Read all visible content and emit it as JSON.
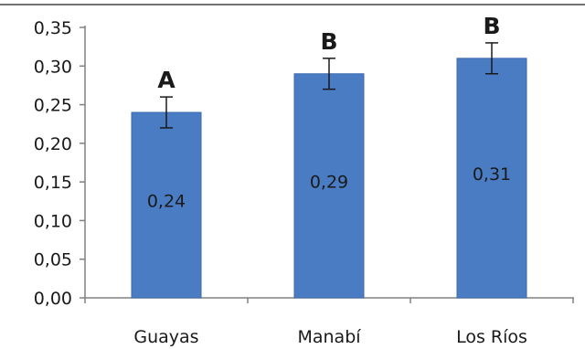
{
  "chart_data": {
    "type": "bar",
    "categories": [
      "Guayas",
      "Manabí",
      "Los Ríos"
    ],
    "values": [
      0.24,
      0.29,
      0.31
    ],
    "value_labels": [
      "0,24",
      "0,29",
      "0,31"
    ],
    "error": [
      0.02,
      0.02,
      0.02
    ],
    "group_letters": [
      "A",
      "B",
      "B"
    ],
    "ylim": [
      0,
      0.35
    ],
    "yticks": [
      0,
      0.05,
      0.1,
      0.15,
      0.2,
      0.25,
      0.3,
      0.35
    ],
    "ytick_labels": [
      "0,00",
      "0,05",
      "0,10",
      "0,15",
      "0,20",
      "0,25",
      "0,30",
      "0,35"
    ],
    "grid": false,
    "legend": "none",
    "title": "",
    "xlabel": "",
    "ylabel": "",
    "colors": {
      "bar": "#4a7cc4",
      "bar_stroke": "#3d6aad",
      "axis": "#808080",
      "error_bar": "#1a1a1a"
    }
  }
}
